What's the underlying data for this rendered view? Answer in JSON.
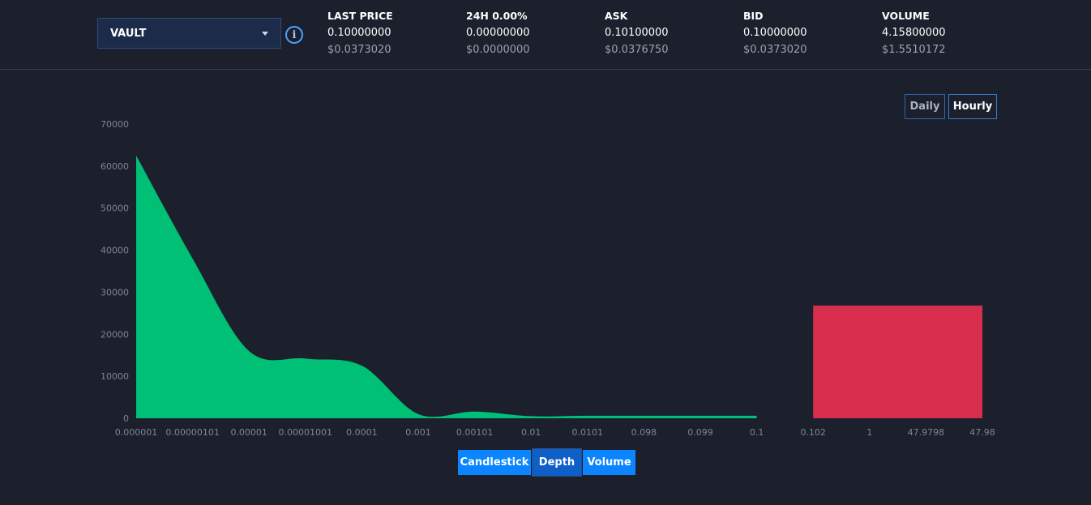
{
  "market": {
    "selected": "VAULT"
  },
  "stats": [
    {
      "label": "LAST PRICE",
      "value": "0.10000000",
      "usd": "$0.0373020"
    },
    {
      "label": "24H 0.00%",
      "value": "0.00000000",
      "usd": "$0.0000000"
    },
    {
      "label": "ASK",
      "value": "0.10100000",
      "usd": "$0.0376750"
    },
    {
      "label": "BID",
      "value": "0.10000000",
      "usd": "$0.0373020"
    },
    {
      "label": "VOLUME",
      "value": "4.15800000",
      "usd": "$1.5510172"
    }
  ],
  "range_buttons": {
    "daily": "Daily",
    "hourly": "Hourly"
  },
  "tabs": {
    "candlestick": "Candlestick",
    "depth": "Depth",
    "volume": "Volume",
    "active": "Depth"
  },
  "colors": {
    "bid": "#00c076",
    "ask": "#d92d4e",
    "accent": "#0a84ff",
    "background": "#1b202c"
  },
  "icons": {
    "info": "info-icon",
    "dropdown": "chevron-down-icon"
  },
  "chart_data": {
    "type": "area",
    "ylim": [
      0,
      70000
    ],
    "y_ticks": [
      0,
      10000,
      20000,
      30000,
      40000,
      50000,
      60000,
      70000
    ],
    "x_ticks": [
      "0.000001",
      "0.00000101",
      "0.00001",
      "0.00001001",
      "0.0001",
      "0.001",
      "0.00101",
      "0.01",
      "0.0101",
      "0.098",
      "0.099",
      "0.1",
      "0.102",
      "1",
      "47.9798",
      "47.98"
    ],
    "grid": false,
    "series": [
      {
        "side": "bid",
        "x": [
          "0.000001",
          "0.00000101",
          "0.00001",
          "0.00001001",
          "0.0001",
          "0.001",
          "0.00101",
          "0.01",
          "0.0101",
          "0.098",
          "0.099",
          "0.1"
        ],
        "values": [
          62500,
          38000,
          16000,
          14200,
          12500,
          1000,
          1600,
          500,
          600,
          600,
          600,
          600
        ]
      },
      {
        "side": "ask",
        "x": [
          "0.102",
          "1",
          "47.9798",
          "47.98"
        ],
        "values": [
          26800,
          26800,
          26800,
          26800
        ]
      }
    ]
  }
}
